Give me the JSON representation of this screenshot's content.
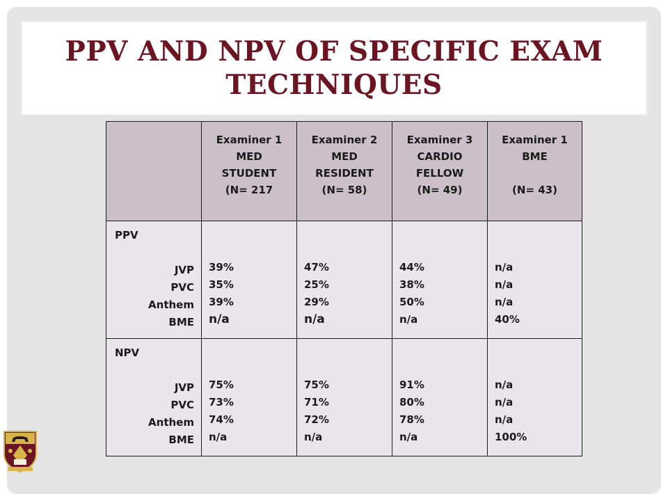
{
  "slide": {
    "title": "PPV and NPV of Specific Exam Techniques"
  },
  "table": {
    "headers": [
      {
        "lines": [
          "Examiner 1",
          "MED",
          "STUDENT",
          "(N= 217"
        ]
      },
      {
        "lines": [
          "Examiner 2",
          "MED",
          "RESIDENT",
          "(N= 58)"
        ]
      },
      {
        "lines": [
          "Examiner 3",
          "CARDIO",
          "FELLOW",
          "(N= 49)"
        ]
      },
      {
        "lines": [
          "Examiner 1",
          "BME",
          "",
          "(N= 43)"
        ]
      }
    ],
    "rows": [
      {
        "section": "PPV",
        "items": [
          "JVP",
          "PVC",
          "Anthem",
          "BME"
        ],
        "values": [
          [
            "39%",
            "35%",
            "39%",
            "n/a"
          ],
          [
            "47%",
            "25%",
            "29%",
            "n/a"
          ],
          [
            "44%",
            "38%",
            "50%",
            "n/a"
          ],
          [
            "n/a",
            "n/a",
            "n/a",
            "40%"
          ]
        ]
      },
      {
        "section": "NPV",
        "items": [
          "JVP",
          "PVC",
          "Anthem",
          "BME"
        ],
        "values": [
          [
            "75%",
            "73%",
            "74%",
            "n/a"
          ],
          [
            "75%",
            "71%",
            "72%",
            "n/a"
          ],
          [
            "91%",
            "80%",
            "78%",
            "n/a"
          ],
          [
            "n/a",
            "n/a",
            "n/a",
            "100%"
          ]
        ]
      }
    ]
  },
  "colors": {
    "title": "#6b1422",
    "header_bg": "#cbc0c8",
    "body_bg": "#e9e6ea",
    "slide_bg": "#e4e4e4"
  },
  "logo": {
    "icon": "university-crest-icon"
  }
}
